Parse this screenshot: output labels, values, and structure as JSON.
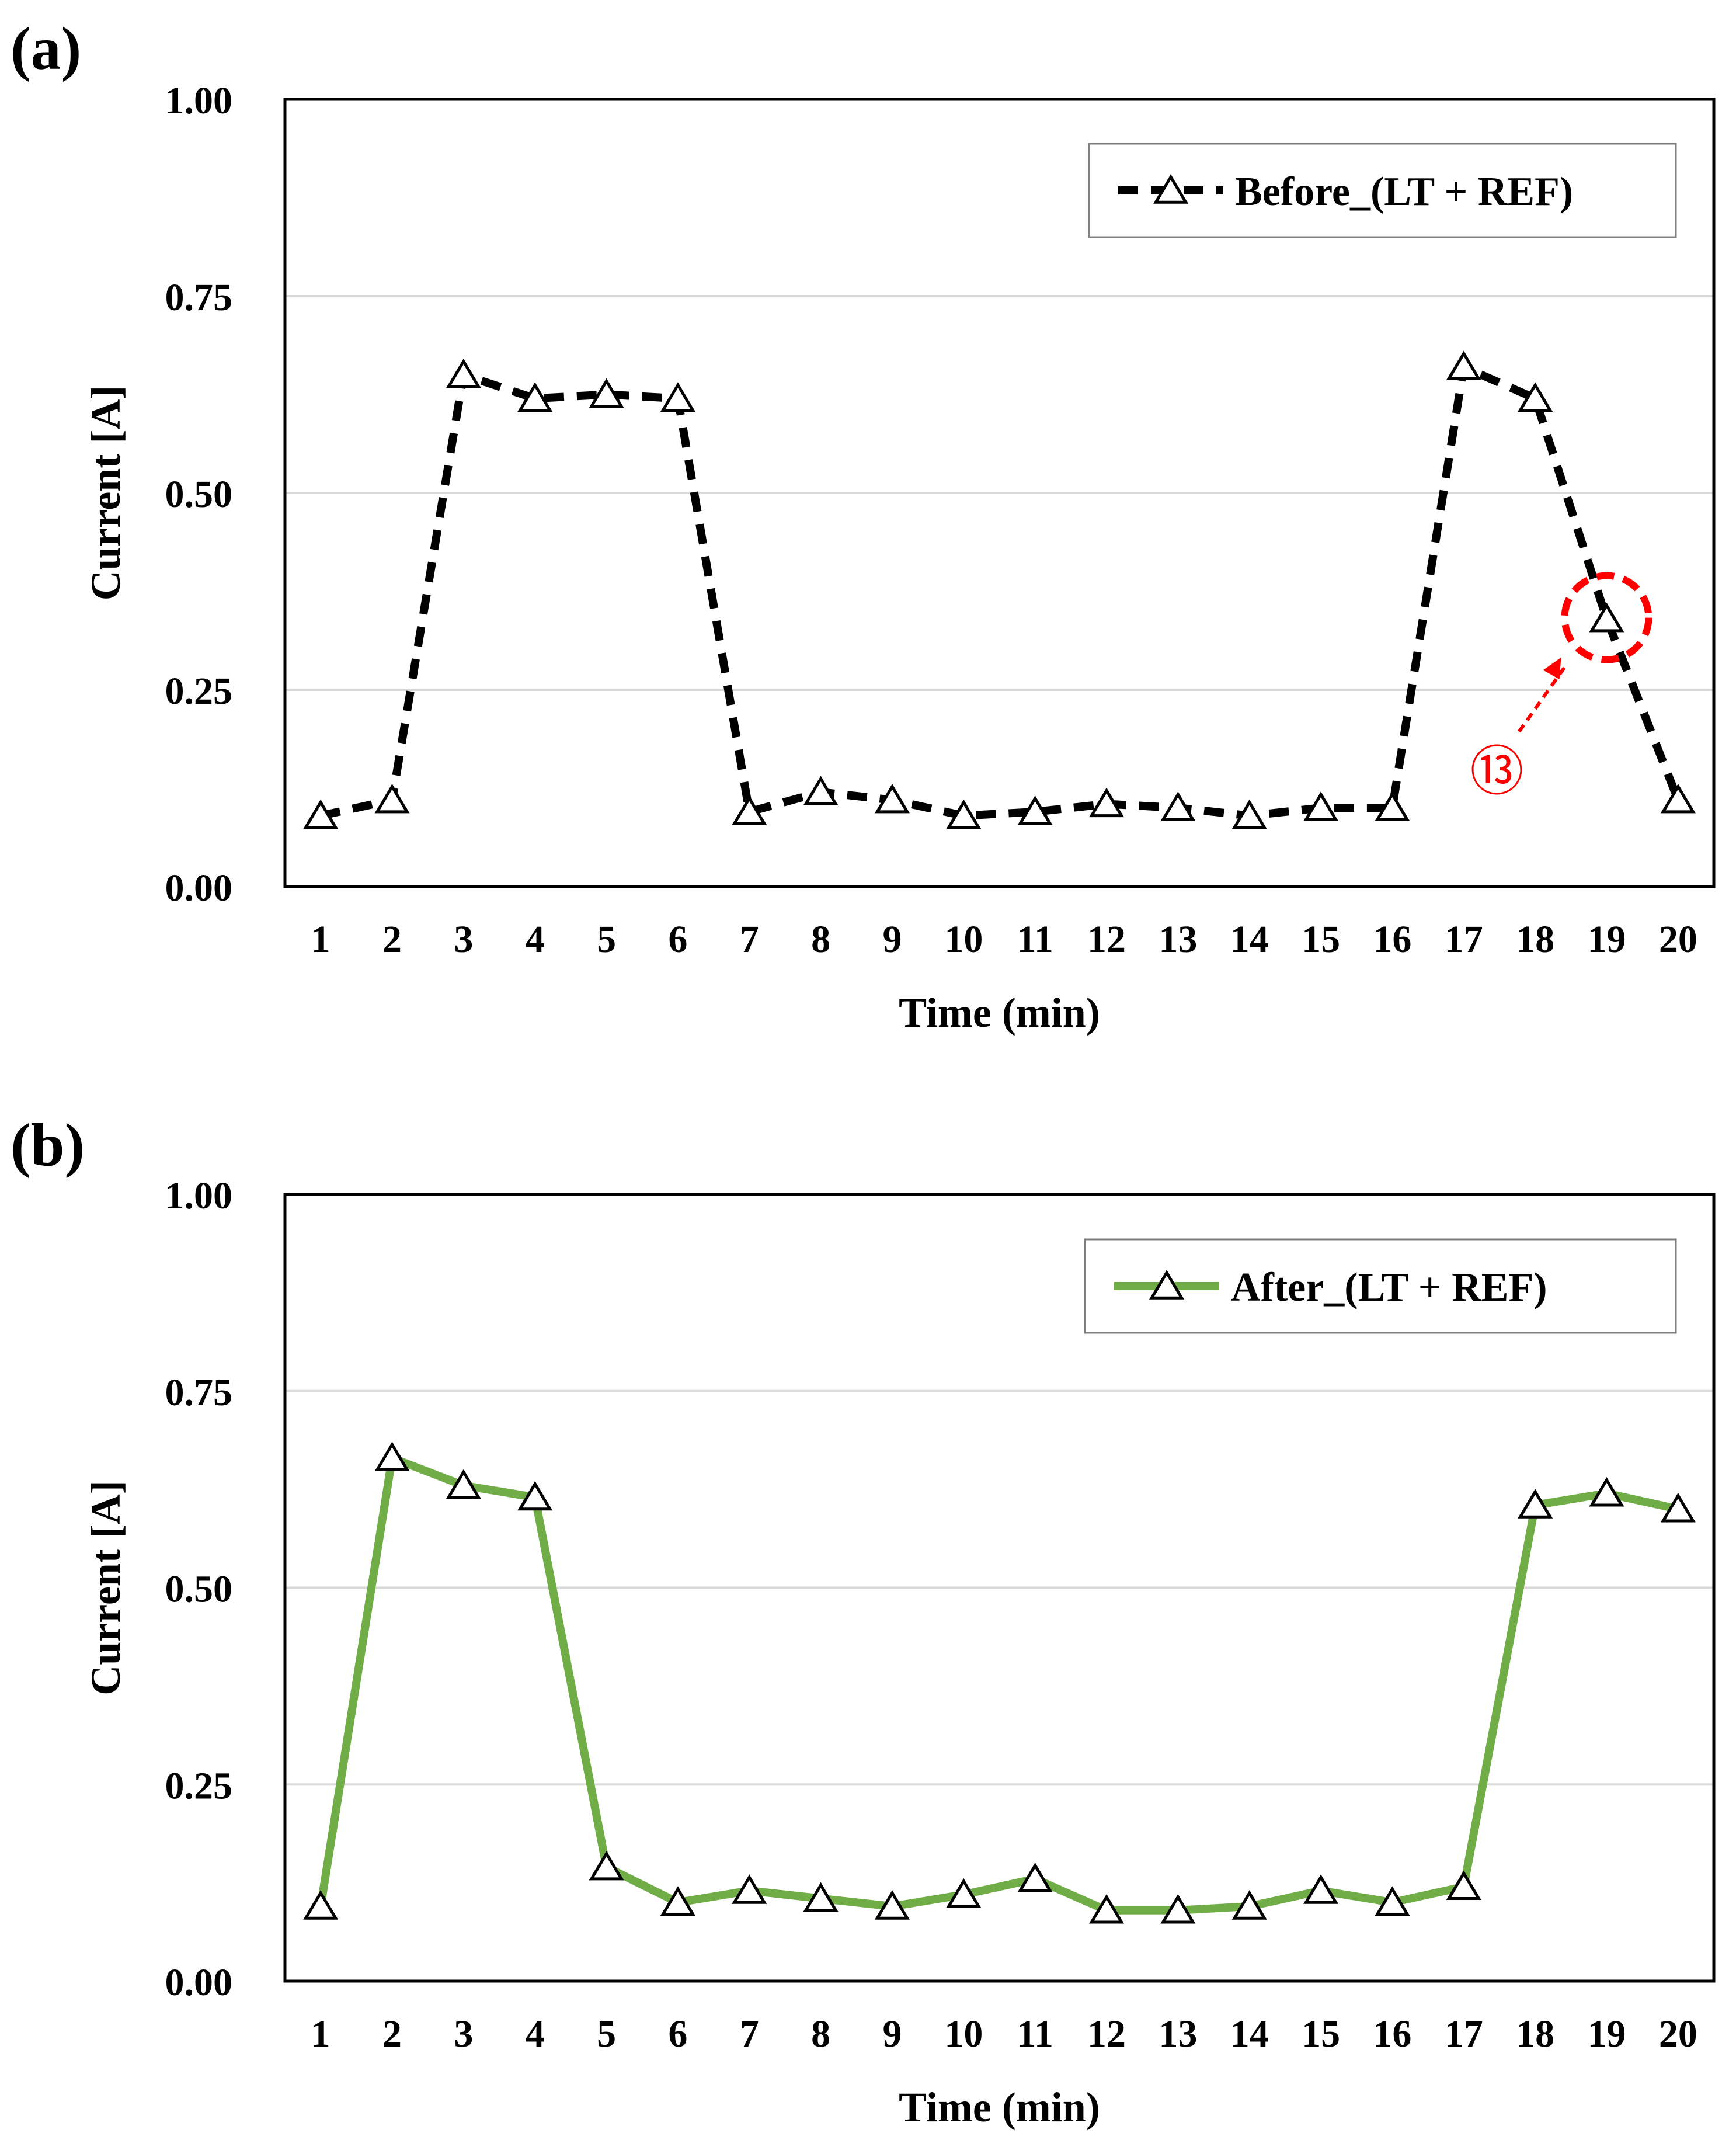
{
  "figure": {
    "panels": [
      "(a)",
      "(b)"
    ]
  },
  "chart_data": [
    {
      "type": "line",
      "panel_label": "(a)",
      "title": "",
      "xlabel": "Time (min)",
      "ylabel": "Current [A]",
      "x": [
        1,
        2,
        3,
        4,
        5,
        6,
        7,
        8,
        9,
        10,
        11,
        12,
        13,
        14,
        15,
        16,
        17,
        18,
        19,
        20
      ],
      "ylim": [
        0,
        1.0
      ],
      "yticks": [
        "0.00",
        "0.25",
        "0.50",
        "0.75",
        "1.00"
      ],
      "grid": true,
      "legend_position": "top-right",
      "series": [
        {
          "name": "Before_(LT + REF)",
          "color": "#000000",
          "line_style": "dashed",
          "marker": "triangle-open",
          "values": [
            0.09,
            0.11,
            0.65,
            0.62,
            0.625,
            0.62,
            0.095,
            0.12,
            0.11,
            0.09,
            0.095,
            0.105,
            0.1,
            0.09,
            0.1,
            0.1,
            0.66,
            0.62,
            0.34,
            0.11
          ]
        }
      ],
      "annotation": {
        "text": "⑬",
        "color": "#ff0000",
        "target_x": 19,
        "target_value": 0.34
      }
    },
    {
      "type": "line",
      "panel_label": "(b)",
      "title": "",
      "xlabel": "Time (min)",
      "ylabel": "Current [A]",
      "x": [
        1,
        2,
        3,
        4,
        5,
        6,
        7,
        8,
        9,
        10,
        11,
        12,
        13,
        14,
        15,
        16,
        17,
        18,
        19,
        20
      ],
      "ylim": [
        0,
        1.0
      ],
      "yticks": [
        "0.00",
        "0.25",
        "0.50",
        "0.75",
        "1.00"
      ],
      "grid": true,
      "legend_position": "top-right",
      "series": [
        {
          "name": "After_(LT + REF)",
          "color": "#70ad47",
          "line_style": "solid",
          "marker": "triangle-open",
          "values": [
            0.095,
            0.665,
            0.63,
            0.615,
            0.145,
            0.1,
            0.115,
            0.105,
            0.095,
            0.11,
            0.13,
            0.09,
            0.09,
            0.095,
            0.115,
            0.1,
            0.12,
            0.605,
            0.62,
            0.6
          ]
        }
      ]
    }
  ]
}
